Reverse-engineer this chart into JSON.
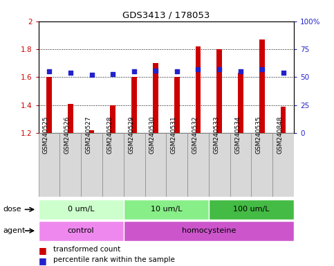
{
  "title": "GDS3413 / 178053",
  "samples": [
    "GSM240525",
    "GSM240526",
    "GSM240527",
    "GSM240528",
    "GSM240529",
    "GSM240530",
    "GSM240531",
    "GSM240532",
    "GSM240533",
    "GSM240534",
    "GSM240535",
    "GSM240848"
  ],
  "transformed_count": [
    1.6,
    1.41,
    1.22,
    1.4,
    1.6,
    1.7,
    1.6,
    1.82,
    1.8,
    1.63,
    1.87,
    1.39
  ],
  "percentile_rank_pct": [
    55,
    54,
    52,
    53,
    55,
    56,
    55,
    57,
    57,
    55,
    57,
    54
  ],
  "ylim_left": [
    1.2,
    2.0
  ],
  "ylim_right": [
    0,
    100
  ],
  "yticks_left": [
    1.2,
    1.4,
    1.6,
    1.8,
    2.0
  ],
  "ytick_labels_left": [
    "1.2",
    "1.4",
    "1.6",
    "1.8",
    "2"
  ],
  "yticks_right": [
    0,
    25,
    50,
    75,
    100
  ],
  "ytick_labels_right": [
    "0",
    "25",
    "50",
    "75",
    "100%"
  ],
  "bar_color": "#cc0000",
  "dot_color": "#2222cc",
  "bar_bottom": 1.2,
  "bar_width": 0.25,
  "dose_groups": [
    {
      "label": "0 um/L",
      "start": 0,
      "end": 4,
      "color": "#ccffcc"
    },
    {
      "label": "10 um/L",
      "start": 4,
      "end": 8,
      "color": "#88ee88"
    },
    {
      "label": "100 um/L",
      "start": 8,
      "end": 12,
      "color": "#44bb44"
    }
  ],
  "agent_groups": [
    {
      "label": "control",
      "start": 0,
      "end": 4,
      "color": "#ee88ee"
    },
    {
      "label": "homocysteine",
      "start": 4,
      "end": 12,
      "color": "#cc55cc"
    }
  ],
  "dose_label": "dose",
  "agent_label": "agent",
  "legend_red_label": "transformed count",
  "legend_blue_label": "percentile rank within the sample",
  "tick_color_left": "#cc0000",
  "tick_color_right": "#2222cc",
  "xlabel_box_color": "#d8d8d8",
  "xlabel_box_edge": "#888888"
}
